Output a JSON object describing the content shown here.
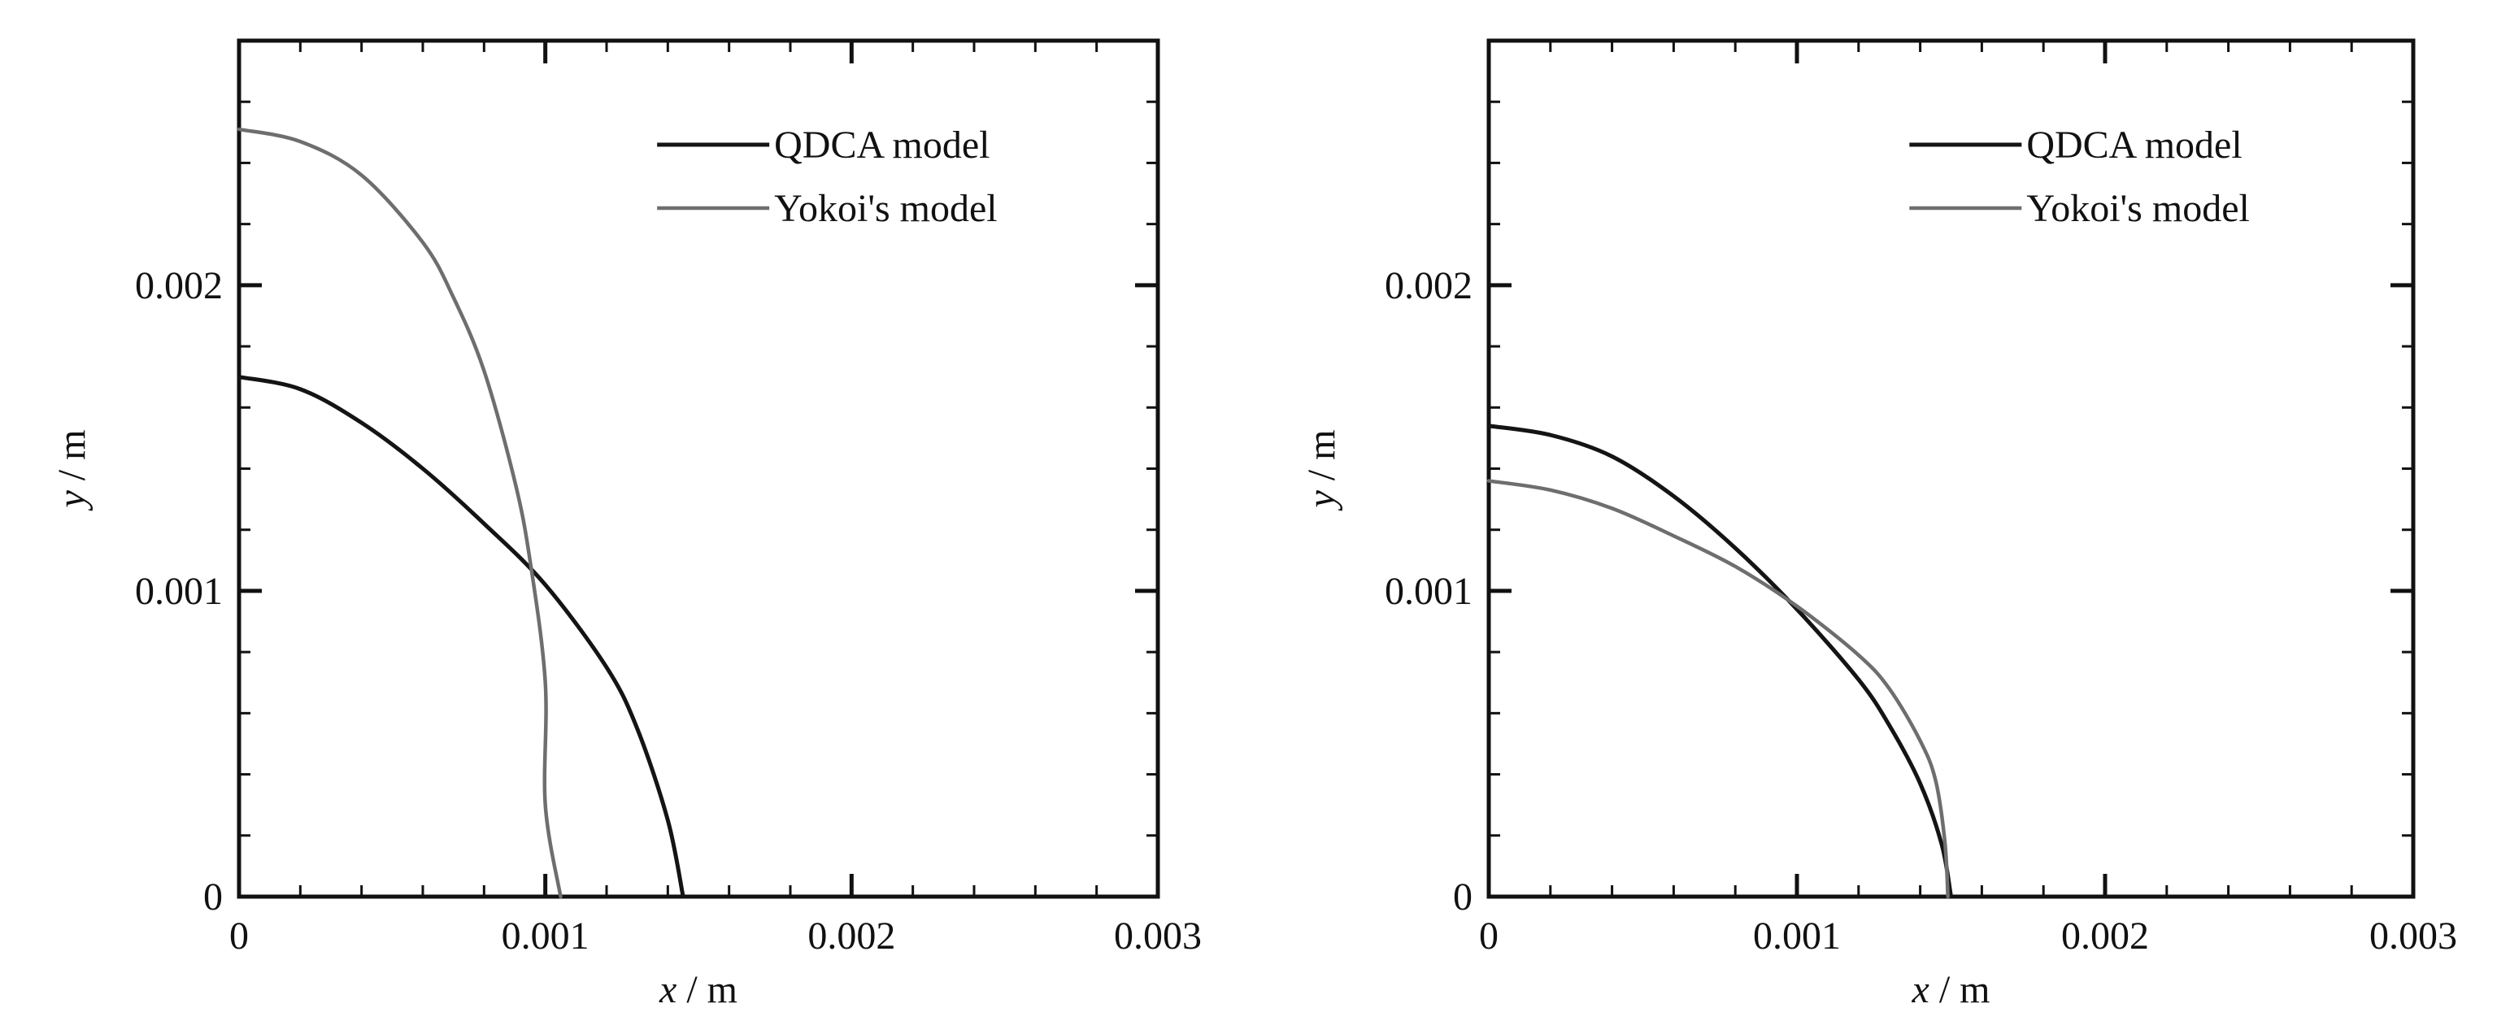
{
  "colors": {
    "qdca": "#141414",
    "yokoi": "#6e6e6e",
    "frame": "#111111",
    "background": "#ffffff"
  },
  "chart_data": [
    {
      "type": "line",
      "xlabel": {
        "var": "x",
        "unit": " / m"
      },
      "ylabel": {
        "var": "y",
        "unit": " / m"
      },
      "xlim": [
        0,
        0.003
      ],
      "ylim": [
        0,
        0.0028
      ],
      "xticks": [
        0,
        0.001,
        0.002,
        0.003
      ],
      "xtick_labels": [
        "0",
        "0.001",
        "0.002",
        "0.003"
      ],
      "yticks": [
        0,
        0.001,
        0.002
      ],
      "ytick_labels": [
        "0",
        "0.001",
        "0.002"
      ],
      "legend": {
        "position": "top-right"
      },
      "series": [
        {
          "name": "QDCA model",
          "color": "#141414",
          "x": [
            0,
            0.0002,
            0.0004,
            0.0006,
            0.0008,
            0.001,
            0.0012,
            0.0013,
            0.0014,
            0.00145
          ],
          "y": [
            0.0017,
            0.00166,
            0.00155,
            0.0014,
            0.00122,
            0.00102,
            0.00075,
            0.00055,
            0.00025,
            0
          ]
        },
        {
          "name": "Yokoi's model",
          "color": "#6e6e6e",
          "x": [
            0,
            0.0002,
            0.0004,
            0.0006,
            0.0007,
            0.0008,
            0.0009,
            0.00095,
            0.001,
            0.001,
            0.00105
          ],
          "y": [
            0.00251,
            0.00247,
            0.00236,
            0.00214,
            0.00196,
            0.00172,
            0.00136,
            0.0011,
            0.0007,
            0.0003,
            0
          ]
        }
      ]
    },
    {
      "type": "line",
      "xlabel": {
        "var": "x",
        "unit": " / m"
      },
      "ylabel": {
        "var": "y",
        "unit": " / m"
      },
      "xlim": [
        0,
        0.003
      ],
      "ylim": [
        0,
        0.0028
      ],
      "xticks": [
        0,
        0.001,
        0.002,
        0.003
      ],
      "xtick_labels": [
        "0",
        "0.001",
        "0.002",
        "0.003"
      ],
      "yticks": [
        0,
        0.001,
        0.002
      ],
      "ytick_labels": [
        "0",
        "0.001",
        "0.002"
      ],
      "legend": {
        "position": "top-right"
      },
      "series": [
        {
          "name": "QDCA model",
          "color": "#141414",
          "x": [
            0,
            0.0002,
            0.0004,
            0.0006,
            0.0008,
            0.001,
            0.0012,
            0.0013,
            0.0014,
            0.00147,
            0.0015
          ],
          "y": [
            0.00154,
            0.00151,
            0.00144,
            0.00131,
            0.00114,
            0.00094,
            0.00071,
            0.00056,
            0.00037,
            0.00017,
            0
          ]
        },
        {
          "name": "Yokoi's model",
          "color": "#6e6e6e",
          "x": [
            0,
            0.0002,
            0.0004,
            0.0006,
            0.0008,
            0.001,
            0.0012,
            0.0013,
            0.0014,
            0.00145,
            0.00148,
            0.00149
          ],
          "y": [
            0.00136,
            0.00133,
            0.00127,
            0.00118,
            0.00108,
            0.00095,
            0.00079,
            0.00068,
            0.00051,
            0.00038,
            0.00018,
            0
          ]
        }
      ]
    }
  ]
}
